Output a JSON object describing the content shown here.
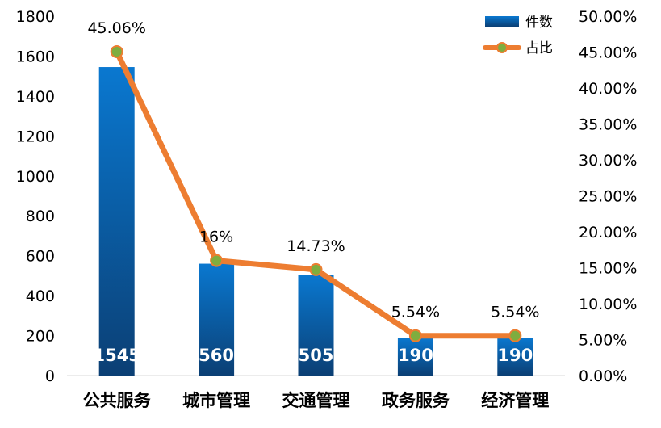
{
  "chart_data": {
    "type": "bar",
    "categories": [
      "公共服务",
      "城市管理",
      "交通管理",
      "政务服务",
      "经济管理"
    ],
    "series": [
      {
        "name": "件数",
        "kind": "bar",
        "axis": "left",
        "values": [
          1545,
          560,
          505,
          190,
          190
        ],
        "labels": [
          "1545",
          "560",
          "505",
          "190",
          "190"
        ],
        "color": "#0a74c9"
      },
      {
        "name": "占比",
        "kind": "line",
        "axis": "right",
        "values": [
          45.06,
          16,
          14.73,
          5.54,
          5.54
        ],
        "labels": [
          "45.06%",
          "16%",
          "14.73%",
          "5.54%",
          "5.54%"
        ],
        "color": "#ed7d31",
        "marker_color": "#7fad3f"
      }
    ],
    "y_left": {
      "ylim": [
        0,
        1800
      ],
      "ticks": [
        "0",
        "200",
        "400",
        "600",
        "800",
        "1000",
        "1200",
        "1400",
        "1600",
        "1800"
      ]
    },
    "y_right": {
      "ylim": [
        0,
        50
      ],
      "ticks": [
        "0.00%",
        "5.00%",
        "10.00%",
        "15.00%",
        "20.00%",
        "25.00%",
        "30.00%",
        "35.00%",
        "40.00%",
        "45.00%",
        "50.00%"
      ]
    },
    "grid": false,
    "legend": "top-right"
  }
}
